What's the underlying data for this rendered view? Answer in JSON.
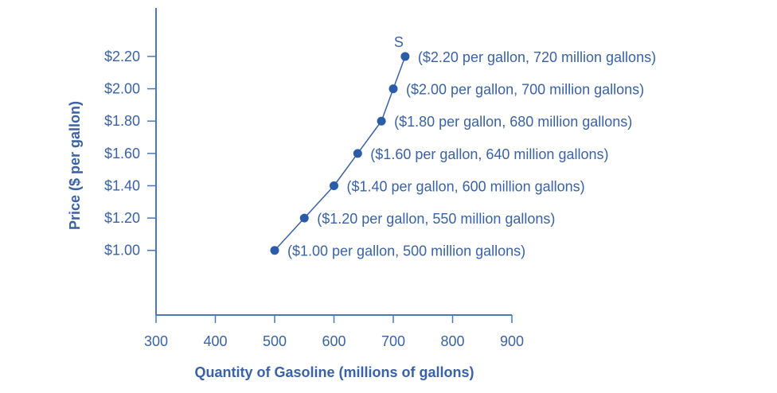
{
  "chart_data": {
    "type": "line",
    "title": "",
    "xlabel": "Quantity of Gasoline (millions of gallons)",
    "ylabel": "Price ($ per gallon)",
    "xlim": [
      300,
      900
    ],
    "ylim": [
      0.6,
      2.5
    ],
    "x_ticks": [
      300,
      400,
      500,
      600,
      700,
      800,
      900
    ],
    "y_ticks": [
      1.0,
      1.2,
      1.4,
      1.6,
      1.8,
      2.0,
      2.2
    ],
    "y_tick_labels": [
      "$1.00",
      "$1.20",
      "$1.40",
      "$1.60",
      "$1.80",
      "$2.00",
      "$2.20"
    ],
    "grid": false,
    "series": [
      {
        "name": "S",
        "x": [
          500,
          550,
          600,
          640,
          680,
          700,
          720
        ],
        "y": [
          1.0,
          1.2,
          1.4,
          1.6,
          1.8,
          2.0,
          2.2
        ],
        "labels": [
          "($1.00 per gallon, 500 million gallons)",
          "($1.20 per gallon, 550 million gallons)",
          "($1.40 per gallon, 600 million gallons)",
          "($1.60 per gallon, 640 million gallons)",
          "($1.80 per gallon, 680 million gallons)",
          "($2.00 per gallon, 700 million gallons)",
          "($2.20 per gallon, 720 million gallons)"
        ]
      }
    ],
    "colors": {
      "line": "#3a62a4",
      "marker": "#2a5ca8",
      "axis": "#4a78b8",
      "text": "#3a62a4"
    }
  }
}
